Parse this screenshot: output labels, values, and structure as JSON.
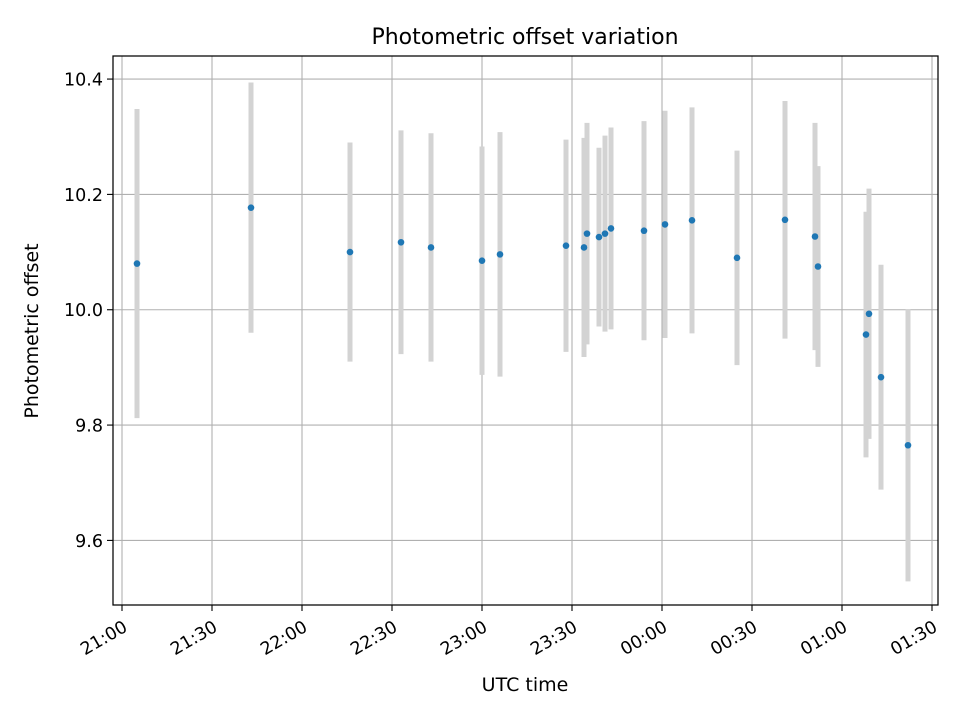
{
  "chart_data": {
    "type": "scatter",
    "title": "Photometric offset variation",
    "xlabel": "UTC time",
    "ylabel": "Photometric offset",
    "x_ticks": [
      "21:00",
      "21:30",
      "22:00",
      "22:30",
      "23:00",
      "23:30",
      "00:00",
      "00:30",
      "01:00",
      "01:30"
    ],
    "y_ticks": [
      "9.6",
      "9.8",
      "10.0",
      "10.2",
      "10.4"
    ],
    "y_tick_values": [
      9.6,
      9.8,
      10.0,
      10.2,
      10.4
    ],
    "xlim": [
      "20:57",
      "01:32"
    ],
    "ylim": [
      9.488,
      10.44
    ],
    "grid": true,
    "marker_color": "#1f77b4",
    "errorbar_color": "#d3d3d3",
    "points": [
      {
        "t": "21:05",
        "y": 10.08,
        "err": 0.268
      },
      {
        "t": "21:43",
        "y": 10.177,
        "err": 0.217
      },
      {
        "t": "22:16",
        "y": 10.1,
        "err": 0.19
      },
      {
        "t": "22:33",
        "y": 10.117,
        "err": 0.194
      },
      {
        "t": "22:43",
        "y": 10.108,
        "err": 0.198
      },
      {
        "t": "23:00",
        "y": 10.085,
        "err": 0.198
      },
      {
        "t": "23:06",
        "y": 10.096,
        "err": 0.212
      },
      {
        "t": "23:28",
        "y": 10.111,
        "err": 0.184
      },
      {
        "t": "23:34",
        "y": 10.108,
        "err": 0.19
      },
      {
        "t": "23:35",
        "y": 10.132,
        "err": 0.192
      },
      {
        "t": "23:39",
        "y": 10.126,
        "err": 0.155
      },
      {
        "t": "23:41",
        "y": 10.132,
        "err": 0.17
      },
      {
        "t": "23:43",
        "y": 10.141,
        "err": 0.175
      },
      {
        "t": "23:54",
        "y": 10.137,
        "err": 0.19
      },
      {
        "t": "00:01",
        "y": 10.148,
        "err": 0.197
      },
      {
        "t": "00:10",
        "y": 10.155,
        "err": 0.196
      },
      {
        "t": "00:25",
        "y": 10.09,
        "err": 0.186
      },
      {
        "t": "00:41",
        "y": 10.156,
        "err": 0.206
      },
      {
        "t": "00:51",
        "y": 10.127,
        "err": 0.197
      },
      {
        "t": "00:52",
        "y": 10.075,
        "err": 0.174
      },
      {
        "t": "01:08",
        "y": 9.957,
        "err": 0.213
      },
      {
        "t": "01:09",
        "y": 9.993,
        "err": 0.217
      },
      {
        "t": "01:13",
        "y": 9.883,
        "err": 0.195
      },
      {
        "t": "01:22",
        "y": 9.765,
        "err": 0.236
      }
    ]
  }
}
